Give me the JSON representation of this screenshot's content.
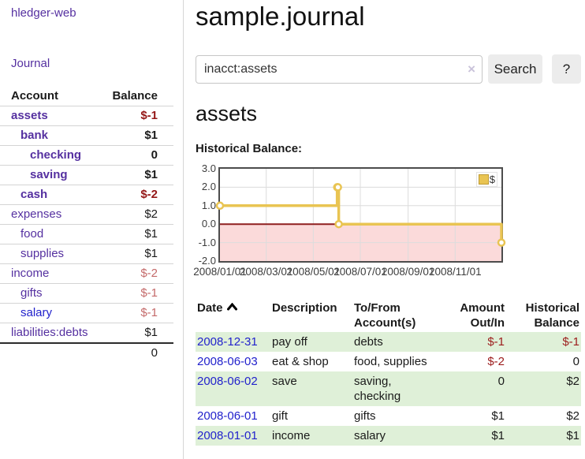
{
  "app": {
    "brand": "hledger-web",
    "nav": {
      "journal": "Journal"
    }
  },
  "sidebar": {
    "header": {
      "account": "Account",
      "balance": "Balance"
    },
    "accounts": [
      {
        "name": "assets",
        "balance": "$-1"
      },
      {
        "name": "bank",
        "balance": "$1"
      },
      {
        "name": "checking",
        "balance": "0"
      },
      {
        "name": "saving",
        "balance": "$1"
      },
      {
        "name": "cash",
        "balance": "$-2"
      },
      {
        "name": "expenses",
        "balance": "$2"
      },
      {
        "name": "food",
        "balance": "$1"
      },
      {
        "name": "supplies",
        "balance": "$1"
      },
      {
        "name": "income",
        "balance": "$-2"
      },
      {
        "name": "gifts",
        "balance": "$-1"
      },
      {
        "name": "salary",
        "balance": "$-1"
      },
      {
        "name": "liabilities:debts",
        "balance": "$1"
      }
    ],
    "total": "0"
  },
  "main": {
    "title": "sample.journal",
    "search": {
      "value": "inacct:assets",
      "clear_icon": "×",
      "search_button": "Search",
      "help_button": "?"
    },
    "account_heading": "assets",
    "section_label": "Historical Balance:"
  },
  "chart_data": {
    "type": "line",
    "step": true,
    "title": "Historical Balance",
    "legend": [
      {
        "label": "$",
        "color": "#e9c452"
      }
    ],
    "x_start": "2008-01-01",
    "x_end": "2008-12-31",
    "points": [
      [
        "2008-01-01",
        1
      ],
      [
        "2008-06-01",
        2
      ],
      [
        "2008-06-02",
        2
      ],
      [
        "2008-06-03",
        0
      ],
      [
        "2008-12-31",
        -1
      ]
    ],
    "ylim": [
      -2,
      3
    ],
    "yticks": [
      "3.0",
      "2.0",
      "1.0",
      "0.0",
      "-1.0",
      "-2.0"
    ],
    "xticks": [
      "2008/01/01",
      "2008/03/01",
      "2008/05/01",
      "2008/07/01",
      "2008/09/01",
      "2008/11/01"
    ],
    "colors": {
      "series": "#e9c452",
      "negative_fill": "#fbdada",
      "zero_line": "#8f1f1f",
      "grid": "#dcdcdc",
      "border": "#4c4c4c"
    }
  },
  "register": {
    "headers": {
      "date": "Date",
      "description": "Description",
      "tofrom": "To/From Account(s)",
      "amount": "Amount Out/In",
      "balance": "Historical Balance"
    },
    "rows": [
      {
        "date": "2008-12-31",
        "description": "pay off",
        "accounts": "debts",
        "amount": "$-1",
        "balance": "$-1"
      },
      {
        "date": "2008-06-03",
        "description": "eat & shop",
        "accounts": "food, supplies",
        "amount": "$-2",
        "balance": "0"
      },
      {
        "date": "2008-06-02",
        "description": "save",
        "accounts": "saving, checking",
        "amount": "0",
        "balance": "$2"
      },
      {
        "date": "2008-06-01",
        "description": "gift",
        "accounts": "gifts",
        "amount": "$1",
        "balance": "$2"
      },
      {
        "date": "2008-01-01",
        "description": "income",
        "accounts": "salary",
        "amount": "$1",
        "balance": "$1"
      }
    ]
  }
}
